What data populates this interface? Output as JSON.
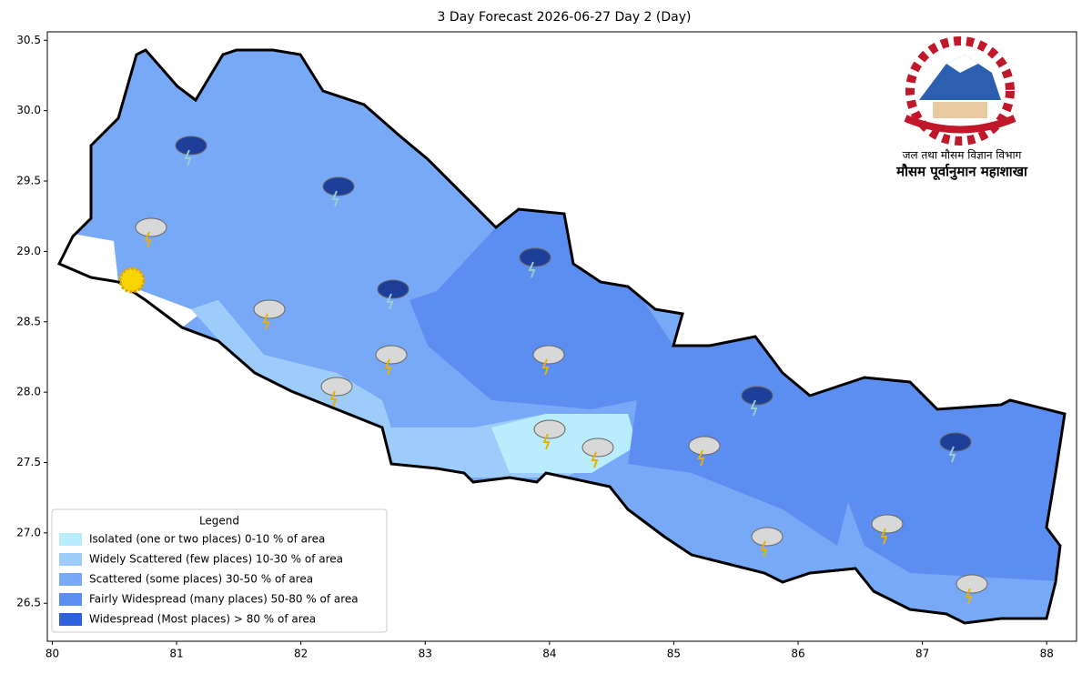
{
  "title": "3 Day Forecast 2026-06-27 Day 2 (Day)",
  "axes": {
    "xlim": [
      79.96,
      88.24
    ],
    "ylim": [
      26.23,
      30.56
    ],
    "xticks": [
      80,
      81,
      82,
      83,
      84,
      85,
      86,
      87,
      88
    ],
    "yticks": [
      26.5,
      {
        "value": 27,
        "label": "27.0"
      },
      27.5,
      {
        "value": 28,
        "label": "28.0"
      },
      28.5,
      {
        "value": 29,
        "label": "29.0"
      },
      29.5,
      {
        "value": 30,
        "label": "30.0"
      },
      30.5
    ]
  },
  "legend": {
    "title": "Legend",
    "items": [
      {
        "label": "Isolated (one or two places)  0-10 % of area",
        "color": "#b9ecfd"
      },
      {
        "label": "Widely Scattered (few places)  10-30 % of area",
        "color": "#9dcbfa"
      },
      {
        "label": "Scattered (some places)  30-50 % of area",
        "color": "#78a9f7"
      },
      {
        "label": "Fairly Widespread (many places)  50-80 % of area",
        "color": "#5b8ef0"
      },
      {
        "label": "Widespread (Most places) > 80 % of area",
        "color": "#2d5fe0"
      }
    ]
  },
  "emblem": {
    "lines": [
      "जल तथा मौसम विज्ञान विभाग",
      "मौसम पूर्वानुमान महाशाखा"
    ]
  }
}
